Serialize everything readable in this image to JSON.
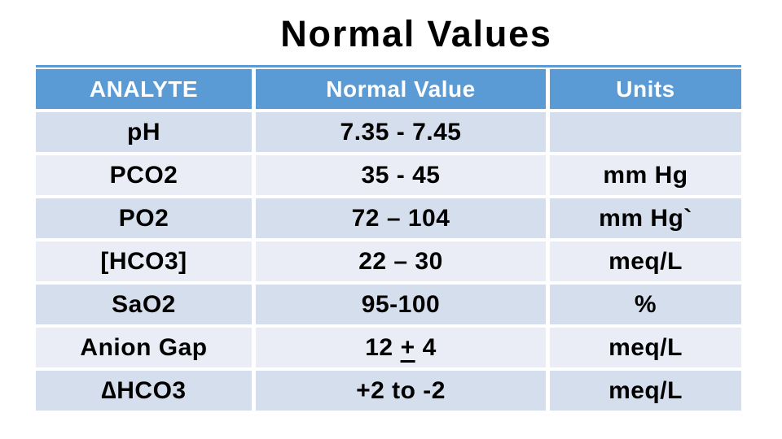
{
  "slide": {
    "title": "Normal Values",
    "colors": {
      "header_bg": "#5b9bd5",
      "band_dark": "#d5deed",
      "band_light": "#eaedf5",
      "header_text": "#ffffff",
      "body_text": "#000000",
      "background": "#ffffff"
    },
    "table": {
      "columns": [
        "ANALYTE",
        "Normal Value",
        "Units"
      ],
      "rows": [
        {
          "analyte": "pH",
          "value": "7.35 - 7.45",
          "units": ""
        },
        {
          "analyte": "PCO2",
          "value": "35 - 45",
          "units": "mm Hg"
        },
        {
          "analyte": "PO2",
          "value": "72 – 104",
          "units": "mm Hg`"
        },
        {
          "analyte": "[HCO3]",
          "value": "22 – 30",
          "units": "meq/L"
        },
        {
          "analyte": "SaO2",
          "value": "95-100",
          "units": "%"
        },
        {
          "analyte": "Anion Gap",
          "value_parts": [
            "12",
            "+",
            "4"
          ],
          "units": "meq/L"
        },
        {
          "analyte": "∆HCO3",
          "value": "+2 to -2",
          "units": "meq/L"
        }
      ]
    }
  }
}
